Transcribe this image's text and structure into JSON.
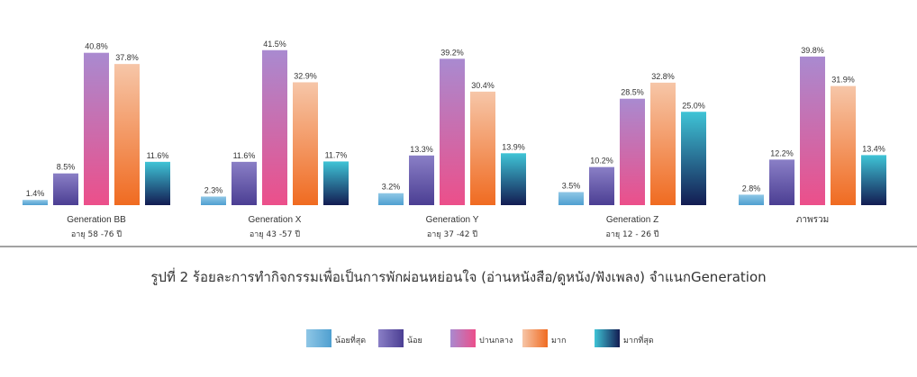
{
  "chart_data": {
    "type": "bar",
    "title": "",
    "xlabel": "",
    "ylabel": "",
    "ylim": [
      0,
      42
    ],
    "grid": false,
    "legend_position": "bottom",
    "categories": [
      "Generation BB",
      "Generation X",
      "Generation Y",
      "Generation Z",
      "ภาพรวม"
    ],
    "category_sublabels": [
      "อายุ 58 -76 ปี",
      "อายุ 43 -57 ปี",
      "อายุ 37 -42 ปี",
      "อายุ 12 - 26 ปี",
      ""
    ],
    "series": [
      {
        "name": "น้อยที่สุด",
        "values": [
          1.4,
          2.3,
          3.2,
          3.5,
          2.8
        ],
        "labels": [
          "1.4%",
          "2.3%",
          "3.2%",
          "3.5%",
          "2.8%"
        ]
      },
      {
        "name": "น้อย",
        "values": [
          8.5,
          11.6,
          13.3,
          10.2,
          12.2
        ],
        "labels": [
          "8.5%",
          "11.6%",
          "13.3%",
          "10.2%",
          "12.2%"
        ]
      },
      {
        "name": "ปานกลาง",
        "values": [
          40.8,
          41.5,
          39.2,
          28.5,
          39.8
        ],
        "labels": [
          "40.8%",
          "41.5%",
          "39.2%",
          "28.5%",
          "39.8%"
        ]
      },
      {
        "name": "มาก",
        "values": [
          37.8,
          32.9,
          30.4,
          32.8,
          31.9
        ],
        "labels": [
          "37.8%",
          "32.9%",
          "30.4%",
          "32.8%",
          "31.9%"
        ]
      },
      {
        "name": "มากที่สุด",
        "values": [
          11.6,
          11.7,
          13.9,
          25.0,
          13.4
        ],
        "labels": [
          "11.6%",
          "11.7%",
          "13.9%",
          "25.0%",
          "13.4%"
        ]
      }
    ]
  },
  "caption": "รูปที่ 2 ร้อยละการทำกิจกรรมเพื่อเป็นการพักผ่อนหย่อนใจ (อ่านหนังสือ/ดูหนัง/ฟังเพลง) จำแนกGeneration",
  "colors": {
    "series_top": [
      "#8fc7e6",
      "#8a7fc6",
      "#a98ad0",
      "#f6c6a8",
      "#3fc4d6"
    ],
    "series_bottom": [
      "#4f9fd0",
      "#4b3e93",
      "#ec4f8a",
      "#f06b21",
      "#131c52"
    ],
    "axis": "#444444",
    "text": "#333333"
  }
}
